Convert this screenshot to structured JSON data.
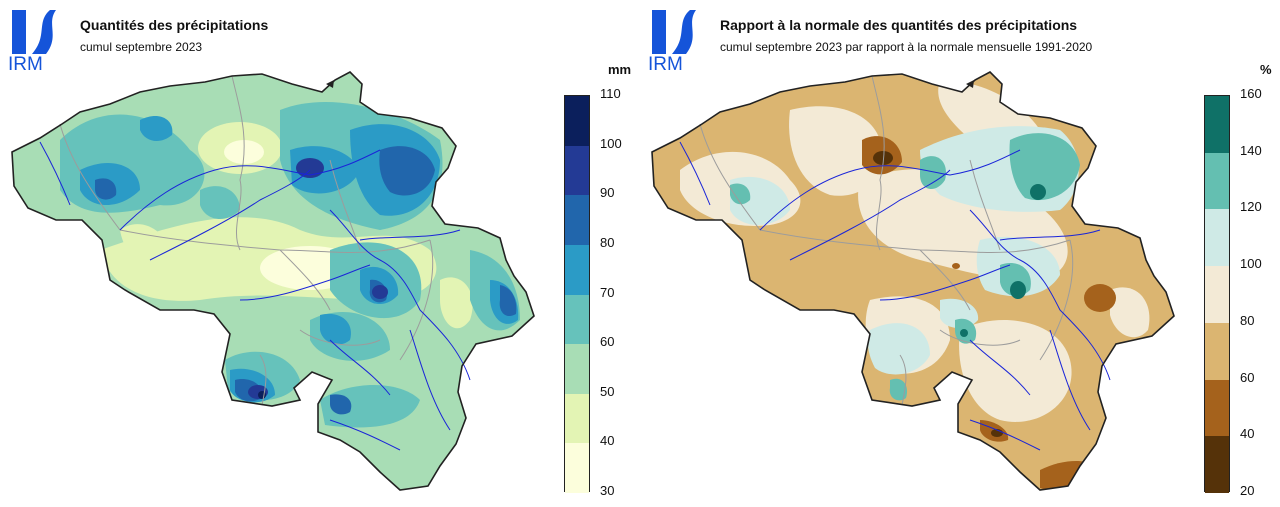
{
  "left": {
    "logo_text": "IRM",
    "title": "Quantités des précipitations",
    "subtitle": "cumul septembre 2023",
    "unit": "mm",
    "legend": {
      "ticks": [
        "110",
        "100",
        "90",
        "80",
        "70",
        "60",
        "50",
        "40",
        "30"
      ],
      "colors": [
        "#0b1f5c",
        "#233a95",
        "#2166ac",
        "#2b9bc6",
        "#66c2bb",
        "#a8ddb5",
        "#e3f4b4",
        "#fcfedc"
      ]
    }
  },
  "right": {
    "logo_text": "IRM",
    "title": "Rapport à la normale des quantités des précipitations",
    "subtitle": "cumul septembre 2023 par rapport à la normale mensuelle 1991-2020",
    "unit": "%",
    "legend": {
      "ticks": [
        "160",
        "140",
        "120",
        "100",
        "80",
        "60",
        "40",
        "20"
      ],
      "colors": [
        "#0f7167",
        "#64bfb1",
        "#cfeae6",
        "#f3ead6",
        "#dbb571",
        "#a5621c",
        "#553209"
      ]
    }
  }
}
